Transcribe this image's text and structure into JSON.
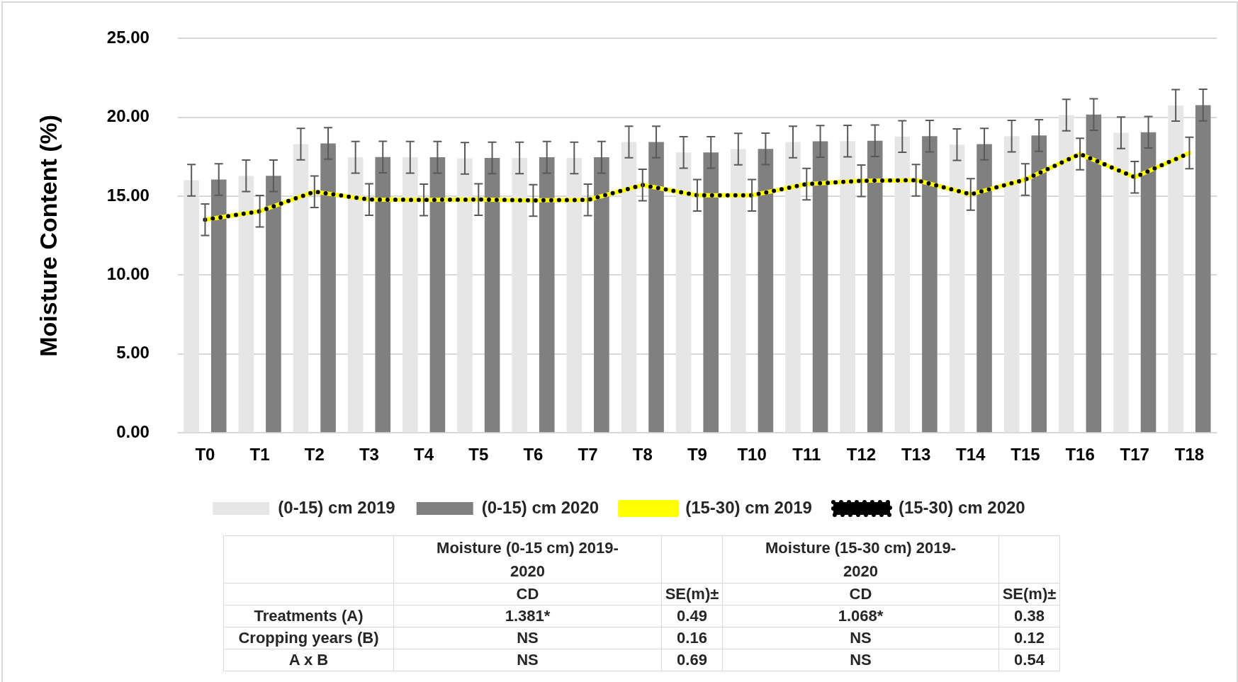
{
  "chart_data": {
    "type": "bar",
    "ylabel": "Moisture Content (%)",
    "categories": [
      "T0",
      "T1",
      "T2",
      "T3",
      "T4",
      "T5",
      "T6",
      "T7",
      "T8",
      "T9",
      "T10",
      "T11",
      "T12",
      "T13",
      "T14",
      "T15",
      "T16",
      "T17",
      "T18"
    ],
    "series": [
      {
        "name": "(0-15) cm 2019",
        "color": "#e6e6e6",
        "values": [
          16.02,
          16.3,
          18.31,
          17.47,
          17.47,
          17.41,
          17.43,
          17.43,
          18.44,
          17.78,
          17.99,
          18.44,
          18.5,
          18.79,
          18.27,
          18.81,
          20.15,
          19.02,
          20.76
        ],
        "errors": [
          1,
          1,
          1,
          1,
          1,
          1,
          1,
          1,
          1,
          1,
          1,
          1,
          1,
          1,
          1,
          1,
          1,
          1,
          1
        ]
      },
      {
        "name": "(0-15) cm 2020",
        "color": "#808080",
        "values": [
          16.06,
          16.3,
          18.35,
          17.49,
          17.47,
          17.43,
          17.47,
          17.47,
          18.44,
          17.78,
          18,
          18.48,
          18.52,
          18.81,
          18.31,
          18.85,
          20.18,
          19.06,
          20.78
        ],
        "errors": [
          1,
          1,
          1,
          1,
          1,
          1,
          1,
          1,
          1,
          1,
          1,
          1,
          1,
          1,
          1,
          1,
          1,
          1,
          1
        ]
      },
      {
        "name": "(15-30) cm 2019",
        "type": "line",
        "color": "#ffff00",
        "line_style": "solid",
        "values": [
          13.51,
          14.05,
          15.29,
          14.79,
          14.77,
          14.79,
          14.74,
          14.77,
          15.71,
          15.06,
          15.06,
          15.77,
          15.98,
          16.02,
          15.12,
          16.06,
          17.68,
          16.21,
          17.74
        ],
        "errors": [
          1,
          1,
          1,
          1,
          1,
          1,
          1,
          1,
          1,
          1,
          1,
          1,
          1,
          1,
          1,
          1,
          1,
          1,
          1
        ]
      },
      {
        "name": "(15-30) cm 2020",
        "type": "line",
        "color": "#000000",
        "line_style": "dotted",
        "values": [
          13.51,
          14.05,
          15.29,
          14.79,
          14.77,
          14.79,
          14.74,
          14.77,
          15.71,
          15.06,
          15.06,
          15.77,
          15.98,
          16.02,
          15.12,
          16.06,
          17.68,
          16.21,
          17.74
        ]
      }
    ],
    "ylim": [
      0,
      25
    ],
    "yticks": [
      {
        "value": 0,
        "label": "0.00"
      },
      {
        "value": 5,
        "label": "5.00"
      },
      {
        "value": 10,
        "label": "10.00"
      },
      {
        "value": 15,
        "label": "15.00"
      },
      {
        "value": 20,
        "label": "20.00"
      },
      {
        "value": 25,
        "label": "25.00"
      }
    ],
    "grid": "y",
    "legend": "bottom",
    "marker": "none",
    "annotations": [
      "Moisture (0-15 cm) 2019-2020",
      "Moisture (15-30 cm) 2019-2020",
      "CD",
      "SE(m)±",
      "CD",
      "SE(m)±",
      "Treatments (A)",
      "1.381*",
      "0.49",
      "1.068*",
      "0.38",
      "Cropping years (B)",
      "NS",
      "0.16",
      "NS",
      "0.12",
      "A x B",
      "NS",
      "0.69",
      "NS",
      "0.54"
    ]
  }
}
